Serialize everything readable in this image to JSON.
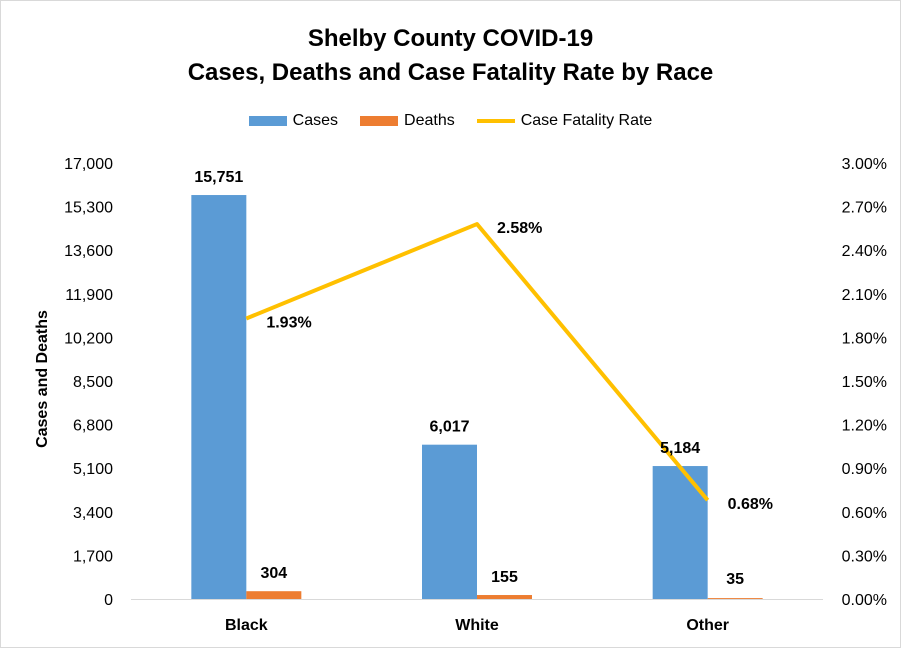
{
  "chart_data": {
    "type": "bar",
    "title": "Shelby County COVID-19",
    "subtitle": "Cases, Deaths and Case Fatality Rate by Race",
    "categories": [
      "Black",
      "White",
      "Other"
    ],
    "series": [
      {
        "name": "Cases",
        "kind": "bar",
        "axis": "left",
        "color": "#5b9bd5",
        "values": [
          15751,
          6017,
          5184
        ],
        "labels": [
          "15,751",
          "6,017",
          "5,184"
        ]
      },
      {
        "name": "Deaths",
        "kind": "bar",
        "axis": "left",
        "color": "#ed7d31",
        "values": [
          304,
          155,
          35
        ],
        "labels": [
          "304",
          "155",
          "35"
        ]
      },
      {
        "name": "Case Fatality Rate",
        "kind": "line",
        "axis": "right",
        "color": "#ffc000",
        "values": [
          1.93,
          2.58,
          0.68
        ],
        "labels": [
          "1.93%",
          "2.58%",
          "0.68%"
        ]
      }
    ],
    "ylabel": "Cases and Deaths",
    "ylim": [
      0,
      17000
    ],
    "yticks": [
      "0",
      "1,700",
      "3,400",
      "5,100",
      "6,800",
      "8,500",
      "10,200",
      "11,900",
      "13,600",
      "15,300",
      "17,000"
    ],
    "y2lim": [
      0,
      3
    ],
    "y2ticks": [
      "0.00%",
      "0.30%",
      "0.60%",
      "0.90%",
      "1.20%",
      "1.50%",
      "1.80%",
      "2.10%",
      "2.40%",
      "2.70%",
      "3.00%"
    ],
    "legend_position": "top",
    "grid": false
  }
}
